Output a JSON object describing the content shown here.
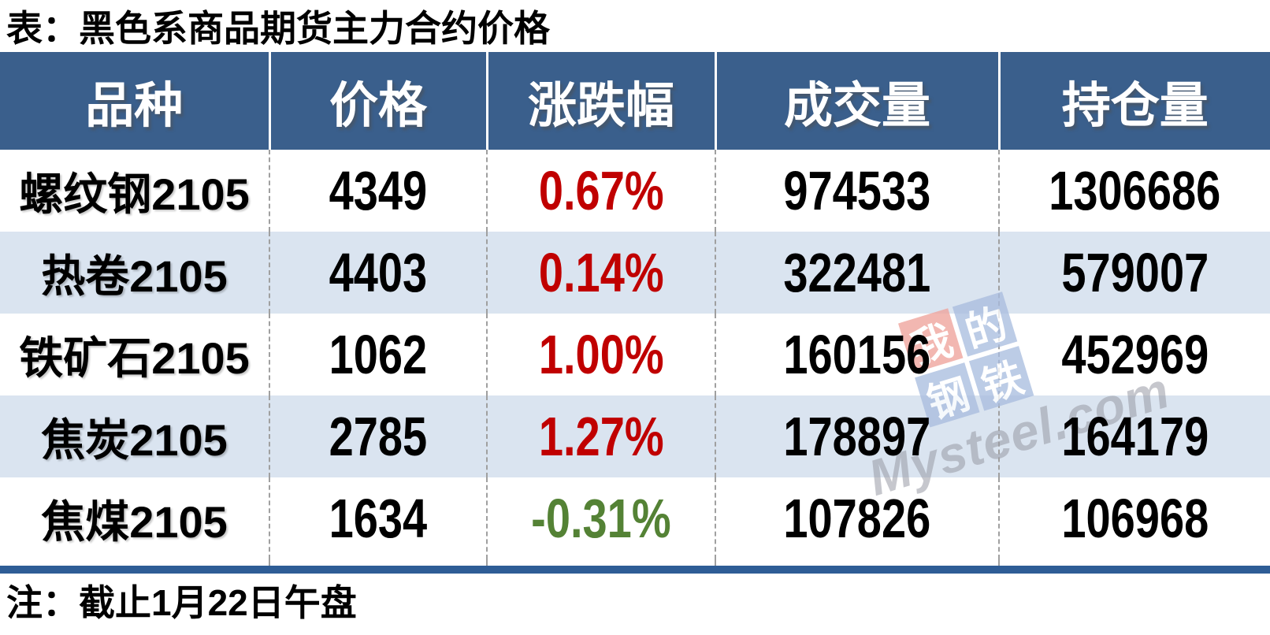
{
  "page": {
    "title": "表：黑色系商品期货主力合约价格",
    "note": "注：截止1月22日午盘"
  },
  "colors": {
    "header_bg": "#3A5F8C",
    "header_text": "#FFFFFF",
    "row_bg": "#FFFFFF",
    "row_alt_bg": "#DAE4F0",
    "divider_bar": "#2E5D96",
    "change_up": "#C00000",
    "change_down": "#548235",
    "dashed_line": "#A0A0A0",
    "text": "#000000",
    "watermark_red_tile": "#EFA29A",
    "watermark_blue_tile": "#A9BCDF",
    "watermark_text": "#9A9CA6"
  },
  "watermark": {
    "text": "Mysteel.com",
    "tiles": [
      {
        "char": "我",
        "style": "red"
      },
      {
        "char": "的",
        "style": "blue"
      },
      {
        "char": "钢",
        "style": "blue"
      },
      {
        "char": "铁",
        "style": "blue"
      }
    ]
  },
  "chart_data": {
    "type": "table",
    "title": "表：黑色系商品期货主力合约价格",
    "columns": [
      "品种",
      "价格",
      "涨跌幅",
      "成交量",
      "持仓量"
    ],
    "rows": [
      [
        "螺纹钢2105",
        "4349",
        "0.67%",
        "974533",
        "1306686"
      ],
      [
        "热卷2105",
        "4403",
        "0.14%",
        "322481",
        "579007"
      ],
      [
        "铁矿石2105",
        "1062",
        "1.00%",
        "160156",
        "452969"
      ],
      [
        "焦炭2105",
        "2785",
        "1.27%",
        "178897",
        "164179"
      ],
      [
        "焦煤2105",
        "1634",
        "-0.31%",
        "107826",
        "106968"
      ]
    ],
    "note": "注：截止1月22日午盘",
    "change_color_up": "#C00000",
    "change_color_down": "#548235"
  }
}
